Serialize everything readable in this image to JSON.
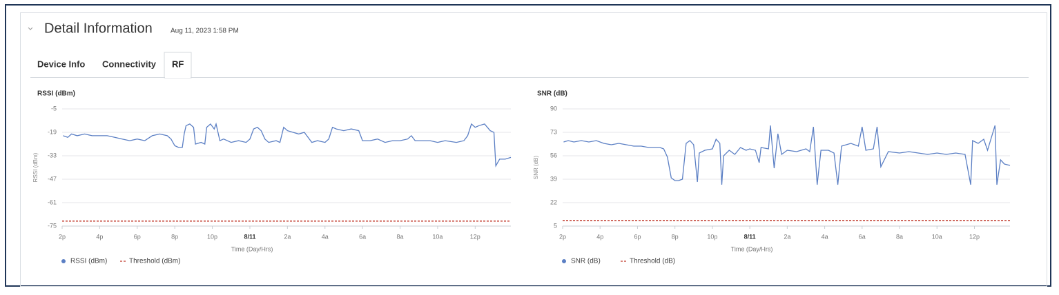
{
  "header": {
    "title": "Detail Information",
    "timestamp": "Aug 11, 2023 1:58 PM"
  },
  "tabs": [
    "Device Info",
    "Connectivity",
    "RF"
  ],
  "selected_tab": 2,
  "chart_data": [
    {
      "type": "line",
      "title": "RSSI (dBm)",
      "y_label": "RSSI (dBm)",
      "x_label": "Time (Day/Hrs)",
      "xlim": [
        14,
        37.9
      ],
      "xticks": [
        {
          "value": 14,
          "label": "2p"
        },
        {
          "value": 16,
          "label": "4p"
        },
        {
          "value": 18,
          "label": "6p"
        },
        {
          "value": 20,
          "label": "8p"
        },
        {
          "value": 22,
          "label": "10p"
        },
        {
          "value": 24,
          "label": "8/11"
        },
        {
          "value": 26,
          "label": "2a"
        },
        {
          "value": 28,
          "label": "4a"
        },
        {
          "value": 30,
          "label": "6a"
        },
        {
          "value": 32,
          "label": "8a"
        },
        {
          "value": 34,
          "label": "10a"
        },
        {
          "value": 36,
          "label": "12p"
        }
      ],
      "ylim": [
        -75,
        -5
      ],
      "yticks": [
        -75,
        -61,
        -47,
        -33,
        -19,
        -5
      ],
      "grid": true,
      "series": [
        {
          "name": "RSSI (dBm)",
          "color": "#5b7fc4",
          "style": "solid",
          "x": [
            14.05,
            14.3,
            14.5,
            14.8,
            15.2,
            15.6,
            16,
            16.4,
            16.8,
            17.2,
            17.6,
            18,
            18.4,
            18.8,
            19.2,
            19.6,
            19.8,
            20,
            20.2,
            20.4,
            20.5,
            20.6,
            20.8,
            21,
            21.1,
            21.4,
            21.6,
            21.7,
            21.9,
            22.1,
            22.2,
            22.4,
            22.6,
            23,
            23.4,
            23.8,
            24,
            24.2,
            24.4,
            24.6,
            24.8,
            25,
            25.4,
            25.6,
            25.8,
            26,
            26.3,
            26.6,
            26.9,
            27.3,
            27.6,
            28,
            28.2,
            28.4,
            28.6,
            29,
            29.4,
            29.8,
            30,
            30.4,
            30.8,
            31.2,
            31.6,
            32,
            32.4,
            32.6,
            32.8,
            33.2,
            33.6,
            34,
            34.4,
            35,
            35.4,
            35.6,
            35.8,
            36,
            36.2,
            36.5,
            36.8,
            37,
            37.1,
            37.3,
            37.6,
            37.9
          ],
          "values": [
            -21,
            -22,
            -20,
            -21,
            -20,
            -21,
            -21,
            -21,
            -22,
            -23,
            -24,
            -23,
            -24,
            -21,
            -20,
            -21,
            -23,
            -27,
            -28,
            -28,
            -20,
            -15,
            -14,
            -16,
            -26,
            -25,
            -26,
            -16,
            -14,
            -17,
            -14,
            -24,
            -23,
            -25,
            -24,
            -25,
            -23,
            -17,
            -16,
            -18,
            -23,
            -25,
            -24,
            -25,
            -16,
            -18,
            -19,
            -20,
            -19,
            -25,
            -24,
            -25,
            -23,
            -16,
            -17,
            -18,
            -17,
            -18,
            -24,
            -24,
            -23,
            -25,
            -24,
            -24,
            -23,
            -21,
            -24,
            -24,
            -24,
            -25,
            -24,
            -25,
            -24,
            -21,
            -14,
            -16,
            -15,
            -14,
            -18,
            -19,
            -39,
            -35,
            -35,
            -34
          ]
        },
        {
          "name": "Threshold (dBm)",
          "color": "#c0392b",
          "style": "dashed",
          "x": [
            14,
            37.9
          ],
          "values": [
            -72,
            -72
          ]
        }
      ]
    },
    {
      "type": "line",
      "title": "SNR (dB)",
      "y_label": "SNR (dB)",
      "x_label": "Time (Day/Hrs)",
      "xlim": [
        14,
        37.9
      ],
      "xticks": [
        {
          "value": 14,
          "label": "2p"
        },
        {
          "value": 16,
          "label": "4p"
        },
        {
          "value": 18,
          "label": "6p"
        },
        {
          "value": 20,
          "label": "8p"
        },
        {
          "value": 22,
          "label": "10p"
        },
        {
          "value": 24,
          "label": "8/11"
        },
        {
          "value": 26,
          "label": "2a"
        },
        {
          "value": 28,
          "label": "4a"
        },
        {
          "value": 30,
          "label": "6a"
        },
        {
          "value": 32,
          "label": "8a"
        },
        {
          "value": 34,
          "label": "10a"
        },
        {
          "value": 36,
          "label": "12p"
        }
      ],
      "ylim": [
        5,
        90
      ],
      "yticks": [
        5,
        22,
        39,
        56,
        73,
        90
      ],
      "grid": true,
      "series": [
        {
          "name": "SNR (dB)",
          "color": "#5b7fc4",
          "style": "solid",
          "x": [
            14.05,
            14.3,
            14.6,
            15,
            15.4,
            15.8,
            16.2,
            16.6,
            17,
            17.4,
            17.8,
            18.2,
            18.6,
            19.2,
            19.4,
            19.6,
            19.8,
            20,
            20.2,
            20.4,
            20.6,
            20.8,
            21,
            21.2,
            21.3,
            21.6,
            22,
            22.2,
            22.4,
            22.5,
            22.6,
            22.9,
            23.2,
            23.5,
            23.8,
            24,
            24.3,
            24.5,
            24.6,
            25,
            25.1,
            25.3,
            25.5,
            25.7,
            26,
            26.5,
            27,
            27.2,
            27.4,
            27.6,
            27.8,
            28.2,
            28.5,
            28.7,
            28.9,
            29.4,
            29.8,
            30,
            30.2,
            30.6,
            30.8,
            31,
            31.4,
            32,
            32.5,
            33,
            33.5,
            34,
            34.5,
            35,
            35.5,
            35.8,
            35.9,
            36.2,
            36.5,
            36.7,
            37.1,
            37.2,
            37.4,
            37.6,
            37.9
          ],
          "values": [
            66,
            67,
            66,
            67,
            66,
            67,
            65,
            64,
            65,
            64,
            63,
            63,
            62,
            62,
            61,
            55,
            40,
            38,
            38,
            39,
            65,
            67,
            64,
            37,
            58,
            60,
            61,
            68,
            65,
            35,
            56,
            60,
            57,
            62,
            60,
            61,
            60,
            51,
            62,
            61,
            78,
            47,
            72,
            57,
            60,
            59,
            61,
            59,
            77,
            35,
            60,
            60,
            58,
            35,
            63,
            65,
            63,
            77,
            60,
            61,
            77,
            48,
            59,
            58,
            59,
            58,
            57,
            58,
            57,
            58,
            57,
            35,
            67,
            65,
            68,
            60,
            78,
            35,
            53,
            50,
            49
          ]
        },
        {
          "name": "Threshold (dB)",
          "color": "#c0392b",
          "style": "dashed",
          "x": [
            14,
            37.9
          ],
          "values": [
            9,
            9
          ]
        }
      ]
    }
  ]
}
